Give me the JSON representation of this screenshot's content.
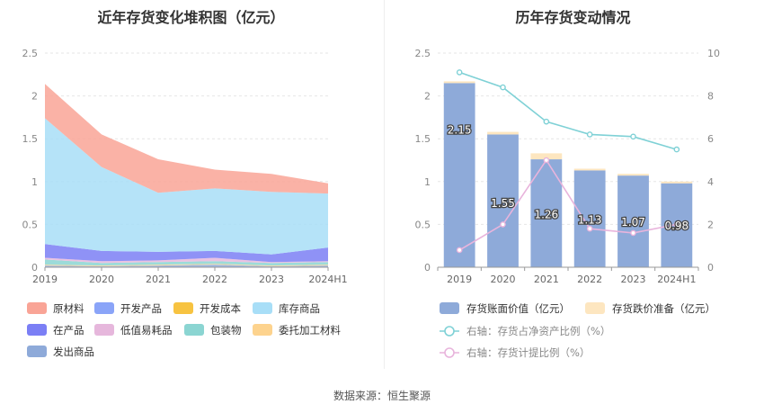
{
  "footer": {
    "label": "数据来源：",
    "source": "恒生聚源"
  },
  "chart_data": [
    {
      "type": "area",
      "title": "近年存货变化堆积图（亿元）",
      "stacked": true,
      "x": [
        "2019",
        "2020",
        "2021",
        "2022",
        "2023",
        "2024H1"
      ],
      "ylim": [
        0,
        2.5
      ],
      "yticks": [
        "0",
        "0.5",
        "1",
        "1.5",
        "2",
        "2.5"
      ],
      "grid": true,
      "legend_position": "bottom",
      "series": [
        {
          "name": "原材料",
          "color": "#f9a496",
          "values": [
            0.4,
            0.38,
            0.39,
            0.22,
            0.21,
            0.12
          ]
        },
        {
          "name": "开发产品",
          "color": "#8aa4f8",
          "values": [
            0,
            0,
            0,
            0,
            0,
            0
          ]
        },
        {
          "name": "开发成本",
          "color": "#f7c341",
          "values": [
            0,
            0,
            0,
            0,
            0,
            0
          ]
        },
        {
          "name": "库存商品",
          "color": "#a8def7",
          "values": [
            1.47,
            0.98,
            0.69,
            0.73,
            0.73,
            0.63
          ]
        },
        {
          "name": "在产品",
          "color": "#7b7ff5",
          "values": [
            0.16,
            0.12,
            0.1,
            0.08,
            0.09,
            0.16
          ]
        },
        {
          "name": "低值易耗品",
          "color": "#e6b7dc",
          "values": [
            0.02,
            0.02,
            0.02,
            0.04,
            0.01,
            0.01
          ]
        },
        {
          "name": "包装物",
          "color": "#8bd5d2",
          "values": [
            0.06,
            0.03,
            0.03,
            0.03,
            0.03,
            0.03
          ]
        },
        {
          "name": "委托加工材料",
          "color": "#fdd38e",
          "values": [
            0.01,
            0.01,
            0.01,
            0.01,
            0.01,
            0.01
          ]
        },
        {
          "name": "发出商品",
          "color": "#8eaad9",
          "values": [
            0.02,
            0.01,
            0.02,
            0.03,
            0.01,
            0.02
          ]
        }
      ]
    },
    {
      "type": "bar",
      "title": "历年存货变动情况",
      "categories": [
        "2019",
        "2020",
        "2021",
        "2022",
        "2023",
        "2024H1"
      ],
      "ylim": [
        0,
        2.5
      ],
      "yticks": [
        "0",
        "0.5",
        "1",
        "1.5",
        "2",
        "2.5"
      ],
      "y2lim": [
        0,
        10
      ],
      "y2ticks": [
        "0",
        "2",
        "4",
        "6",
        "8",
        "10"
      ],
      "grid": true,
      "legend_position": "bottom",
      "stacked": true,
      "series": [
        {
          "name": "存货账面价值（亿元）",
          "type": "bar",
          "axis": "left",
          "color": "#8eaad9",
          "values": [
            2.15,
            1.55,
            1.26,
            1.13,
            1.07,
            0.98
          ],
          "labels": [
            "2.15",
            "1.55",
            "1.26",
            "1.13",
            "1.07",
            "0.98"
          ]
        },
        {
          "name": "存货跌价准备（亿元）",
          "type": "bar",
          "axis": "left",
          "color": "#fde6c0",
          "values": [
            0.02,
            0.03,
            0.07,
            0.02,
            0.02,
            0.02
          ]
        },
        {
          "name": "右轴：存货占净资产比例（%）",
          "type": "line",
          "axis": "right",
          "color": "#7fd1d6",
          "values": [
            9.1,
            8.4,
            6.8,
            6.2,
            6.1,
            5.5
          ]
        },
        {
          "name": "右轴：存货计提比例（%）",
          "type": "line",
          "axis": "right",
          "color": "#e8b4dc",
          "values": [
            0.8,
            2.0,
            5.0,
            1.8,
            1.6,
            2.0
          ]
        }
      ]
    }
  ]
}
